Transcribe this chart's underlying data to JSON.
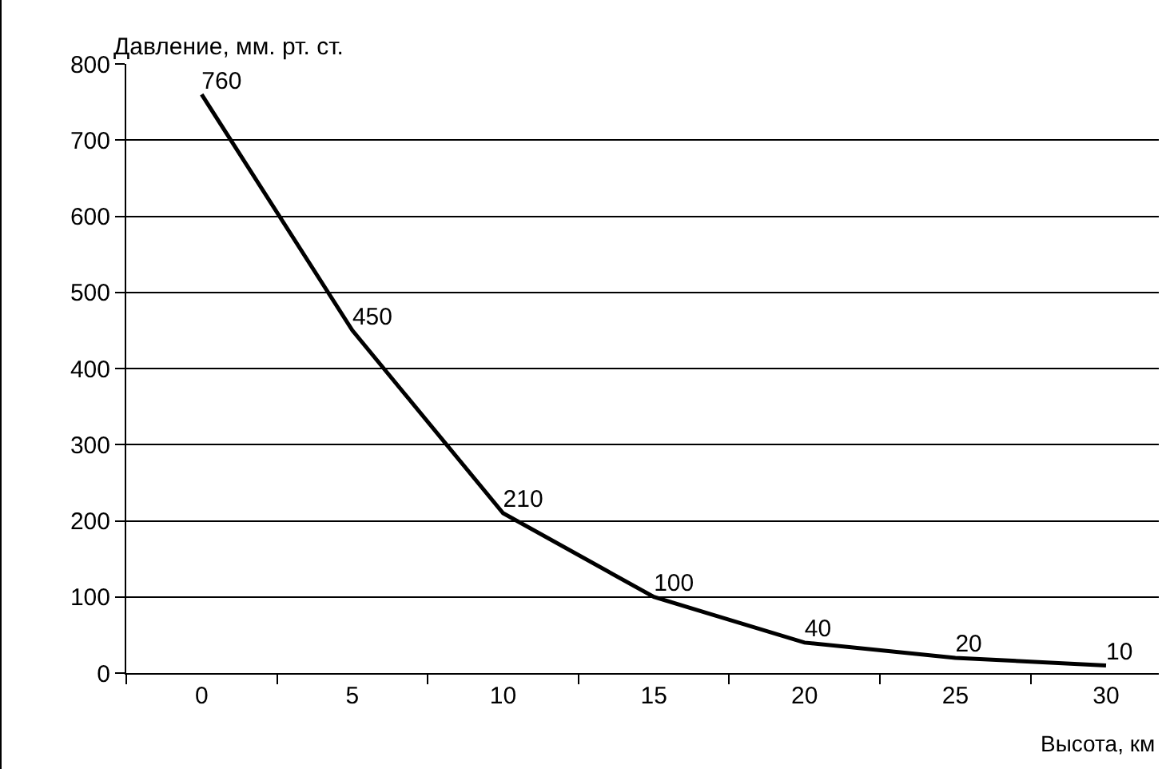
{
  "chart_data": {
    "type": "line",
    "xlabel": "Высота, км",
    "ylabel": "Давление, мм. рт. ст.",
    "categories": [
      "0",
      "5",
      "10",
      "15",
      "20",
      "25",
      "30"
    ],
    "values": [
      760,
      450,
      210,
      100,
      40,
      20,
      10
    ],
    "color": "#000000",
    "ylim": [
      0,
      800
    ],
    "yticks": [
      0,
      100,
      200,
      300,
      400,
      500,
      600,
      700,
      800
    ],
    "grid": "y",
    "data_labels": true,
    "marker": "none",
    "line_style": "solid"
  }
}
